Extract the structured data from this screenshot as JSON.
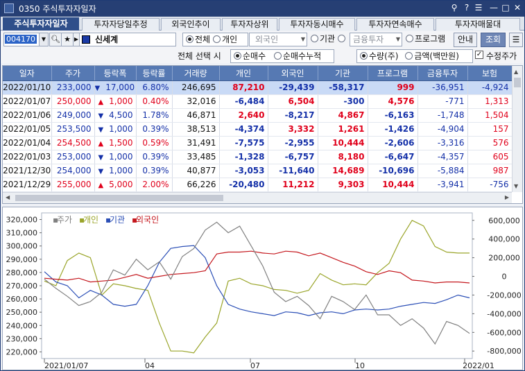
{
  "window": {
    "title": "0350 주식투자자일자",
    "icons": [
      "pin-icon",
      "help-icon",
      "menu-icon",
      "minimize-icon",
      "maximize-icon",
      "close-icon"
    ]
  },
  "tabs": [
    "주식투자자일자",
    "투자자당일추정",
    "외국인추이",
    "투자자상위",
    "투자자동시매수",
    "투자자연속매수",
    "투자자매물대"
  ],
  "toolbar": {
    "code": "004170",
    "name": "신세계",
    "radio_all": "전체",
    "radio_individual": "개인",
    "foreign_select": "외국인",
    "radio_inst": "기관",
    "inst_select": "금융투자",
    "radio_program": "프로그램",
    "guide_btn": "안내",
    "query_btn": "조회"
  },
  "options": {
    "label": "전체 선택 시",
    "net_buy": "순매수",
    "net_buy_cum": "순매수누적",
    "qty": "수량(주)",
    "amount": "금액(백만원)",
    "adj_price": "수정주가"
  },
  "table": {
    "headers": [
      "일자",
      "주가",
      "등락폭",
      "등락률",
      "거래량",
      "개인",
      "외국인",
      "기관",
      "프로그램",
      "금융투자",
      "보험"
    ],
    "rows": [
      [
        "2022/01/10",
        "233,000",
        "▼",
        "17,000",
        "6.80%",
        "246,695",
        "87,210",
        "-29,439",
        "-58,317",
        "999",
        "-36,951",
        "-4,924"
      ],
      [
        "2022/01/07",
        "250,000",
        "▲",
        "1,000",
        "0.40%",
        "32,016",
        "-6,484",
        "6,504",
        "-300",
        "4,576",
        "-771",
        "1,313"
      ],
      [
        "2022/01/06",
        "249,000",
        "▼",
        "4,500",
        "1.78%",
        "46,871",
        "2,640",
        "-8,217",
        "4,867",
        "-6,163",
        "-1,748",
        "1,504"
      ],
      [
        "2022/01/05",
        "253,500",
        "▼",
        "1,000",
        "0.39%",
        "38,513",
        "-4,374",
        "3,332",
        "1,261",
        "-1,426",
        "-4,904",
        "157"
      ],
      [
        "2022/01/04",
        "254,500",
        "▲",
        "1,500",
        "0.59%",
        "31,491",
        "-7,575",
        "-2,955",
        "10,444",
        "-2,606",
        "-3,316",
        "576"
      ],
      [
        "2022/01/03",
        "253,000",
        "▼",
        "1,000",
        "0.39%",
        "33,485",
        "-1,328",
        "-6,757",
        "8,180",
        "-6,647",
        "-4,357",
        "605"
      ],
      [
        "2021/12/30",
        "254,000",
        "▼",
        "1,000",
        "0.39%",
        "40,877",
        "-3,053",
        "-11,640",
        "14,689",
        "-10,696",
        "-5,884",
        "987"
      ],
      [
        "2021/12/29",
        "255,000",
        "▲",
        "5,000",
        "2.00%",
        "66,226",
        "-20,480",
        "11,212",
        "9,303",
        "10,444",
        "-3,941",
        "-756"
      ]
    ]
  },
  "chart_data": {
    "type": "line",
    "legend": [
      "주가",
      "개인",
      "기관",
      "외국인"
    ],
    "colors": {
      "주가": "#808080",
      "개인": "#9aa52a",
      "기관": "#2a4eb6",
      "외국인": "#c4161c"
    },
    "y_left": {
      "ticks": [
        "320,000",
        "310,000",
        "300,000",
        "290,000",
        "280,000",
        "270,000",
        "260,000",
        "250,000",
        "240,000",
        "230,000",
        "220,000"
      ],
      "range": [
        215000,
        325000
      ]
    },
    "y_right": {
      "ticks": [
        "600,000",
        "400,000",
        "200,000",
        "0",
        "-200,000",
        "-400,000",
        "-600,000",
        "-800,000"
      ],
      "range": [
        -880000,
        680000
      ]
    },
    "x_ticks": [
      "2021/01/07",
      "04",
      "07",
      "10",
      "2022/01"
    ],
    "series": {
      "주가": [
        275000,
        268000,
        262000,
        255000,
        258000,
        265000,
        282000,
        278000,
        290000,
        282000,
        288000,
        275000,
        292000,
        298000,
        312000,
        318000,
        310000,
        315000,
        300000,
        285000,
        265000,
        258000,
        262000,
        255000,
        245000,
        262000,
        258000,
        252000,
        263000,
        248000,
        248000,
        240000,
        245000,
        238000,
        226000,
        243000,
        240000,
        234000
      ],
      "개인": [
        -50000,
        -100000,
        170000,
        250000,
        200000,
        -200000,
        -80000,
        -100000,
        -130000,
        -150000,
        -500000,
        -800000,
        -800000,
        -820000,
        -650000,
        -500000,
        -50000,
        -20000,
        -80000,
        -100000,
        -140000,
        -150000,
        -180000,
        -150000,
        30000,
        -40000,
        -90000,
        -80000,
        -90000,
        40000,
        140000,
        400000,
        600000,
        540000,
        320000,
        260000,
        250000,
        250000
      ],
      "기관": [
        50000,
        -60000,
        -100000,
        -230000,
        -150000,
        -200000,
        -300000,
        -320000,
        -300000,
        -100000,
        150000,
        300000,
        320000,
        330000,
        200000,
        -100000,
        -300000,
        -350000,
        -380000,
        -400000,
        -420000,
        -380000,
        -390000,
        -420000,
        -390000,
        -380000,
        -400000,
        -360000,
        -350000,
        -360000,
        -350000,
        -320000,
        -300000,
        -280000,
        -290000,
        -250000,
        -200000,
        -230000
      ],
      "외국인": [
        -20000,
        -30000,
        -40000,
        -20000,
        -60000,
        -50000,
        -40000,
        -10000,
        20000,
        -20000,
        0,
        20000,
        30000,
        40000,
        60000,
        240000,
        260000,
        260000,
        270000,
        250000,
        240000,
        270000,
        260000,
        220000,
        250000,
        200000,
        150000,
        110000,
        50000,
        20000,
        60000,
        40000,
        -40000,
        -50000,
        -70000,
        -60000,
        -60000,
        -70000
      ]
    }
  }
}
